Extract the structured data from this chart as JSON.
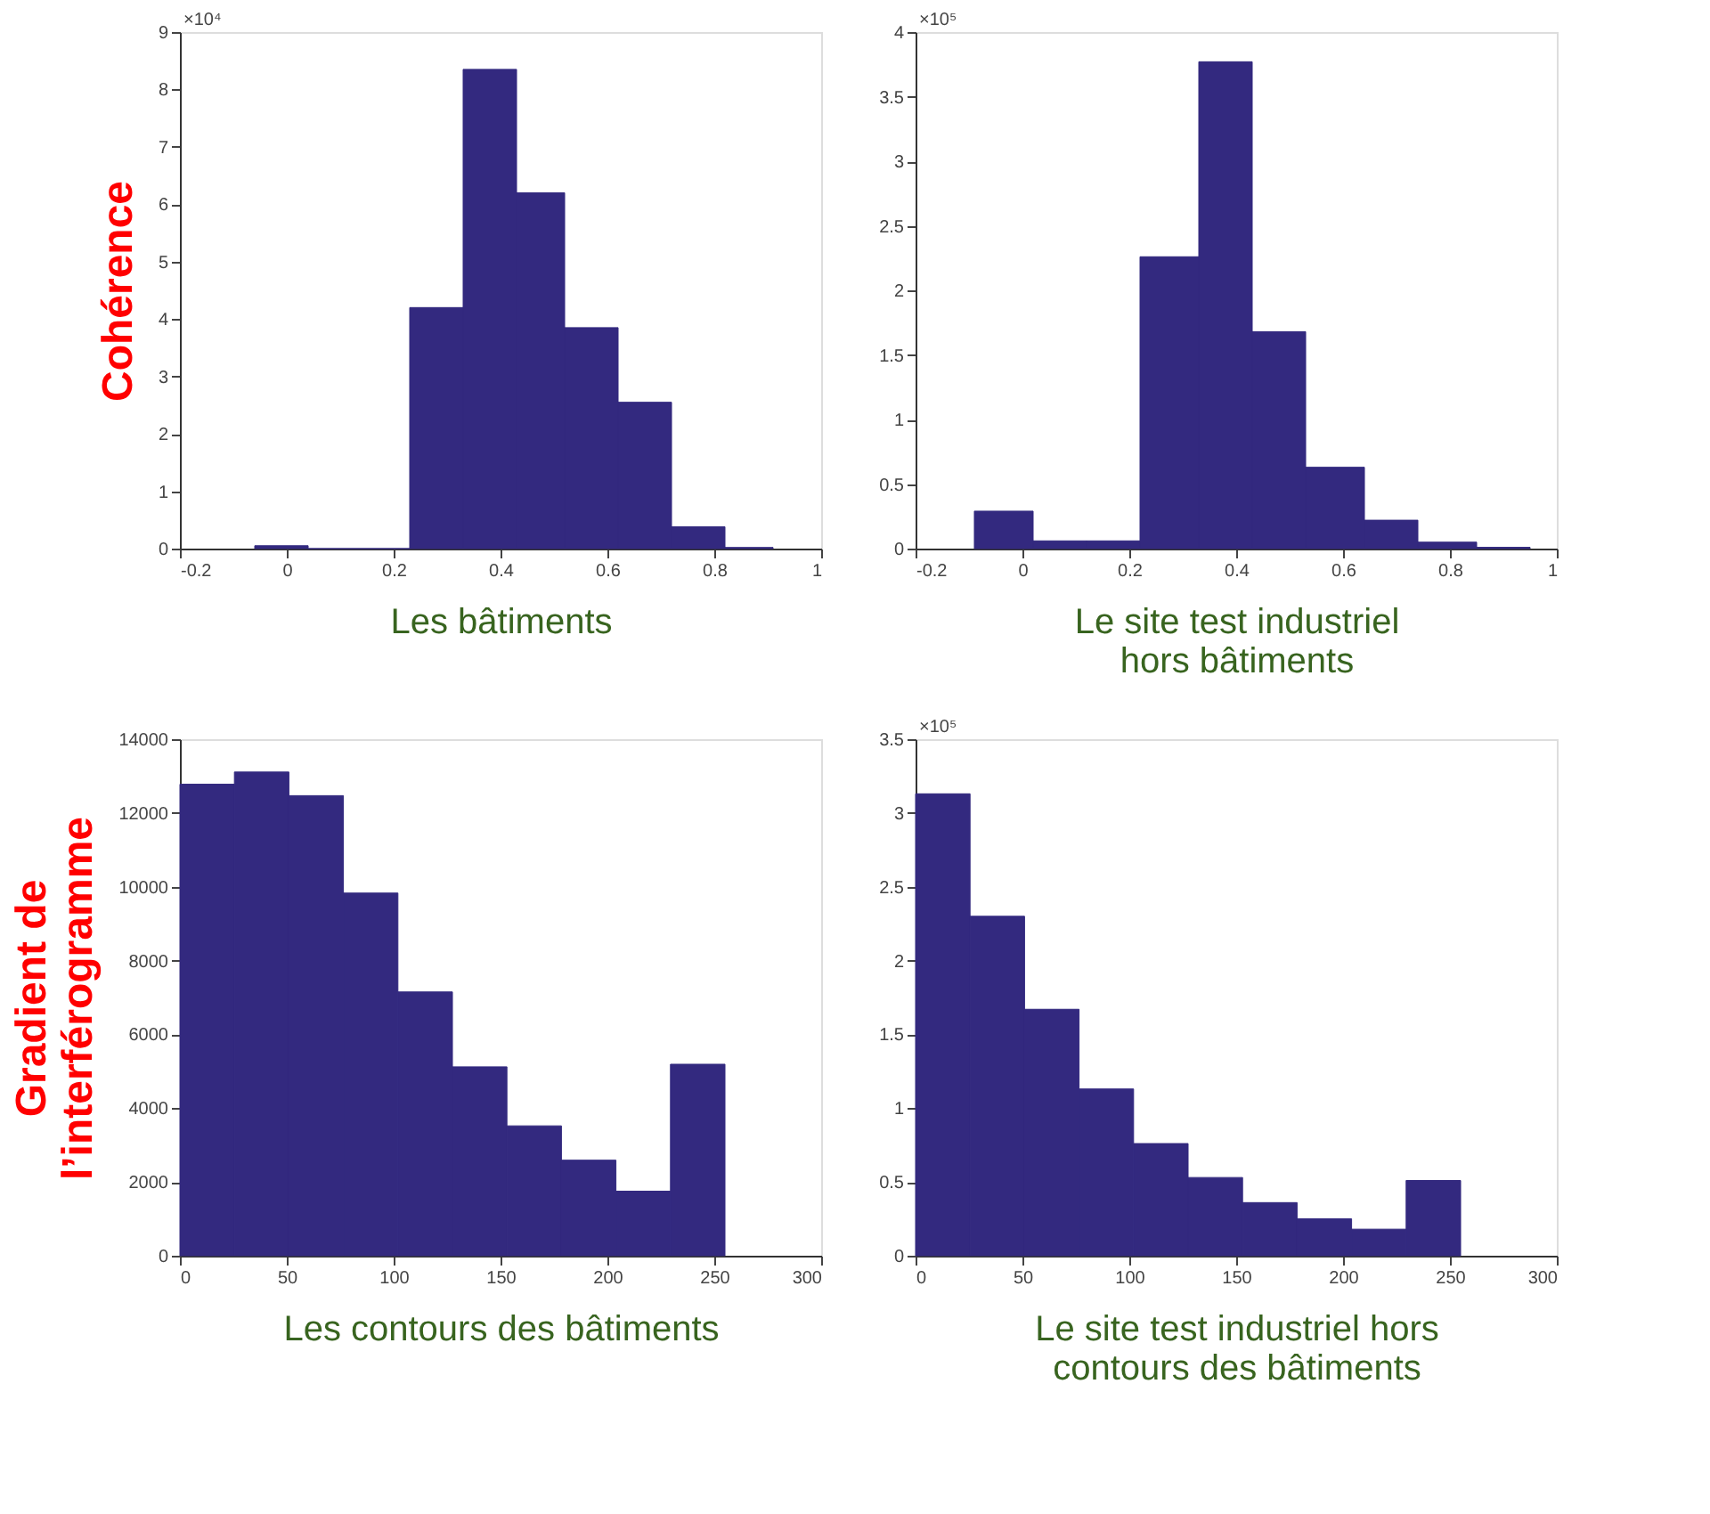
{
  "chart_data": [
    {
      "type": "histogram",
      "ylabel": "Cohérence",
      "xlabel": "Les bâtiments",
      "annotations": [
        "×10⁴"
      ],
      "bins": [
        -0.06,
        0.04,
        0.13,
        0.23,
        0.33,
        0.43,
        0.52,
        0.62,
        0.72,
        0.82,
        0.91
      ],
      "values": [
        0.05,
        0,
        0,
        4.2,
        8.35,
        6.2,
        3.85,
        2.55,
        0.38,
        0.02
      ],
      "color": "#33297f",
      "xlim": [
        -0.2,
        1
      ],
      "xticks": [
        -0.2,
        0,
        0.2,
        0.4,
        0.6,
        0.8,
        1
      ],
      "ylim": [
        0,
        9
      ],
      "yticks": [
        0,
        1,
        2,
        3,
        4,
        5,
        6,
        7,
        8,
        9
      ],
      "grid": false
    },
    {
      "type": "histogram",
      "xlabel": "Le site test industriel\nhors bâtiments",
      "annotations": [
        "×10⁵"
      ],
      "bins": [
        -0.09,
        0.02,
        0.12,
        0.22,
        0.33,
        0.43,
        0.53,
        0.64,
        0.74,
        0.85,
        0.95
      ],
      "values": [
        0.29,
        0.06,
        0.06,
        2.26,
        3.77,
        1.68,
        0.63,
        0.22,
        0.05,
        0.01
      ],
      "color": "#33297f",
      "xlim": [
        -0.2,
        1
      ],
      "xticks": [
        -0.2,
        0,
        0.2,
        0.4,
        0.6,
        0.8,
        1
      ],
      "ylim": [
        0,
        4
      ],
      "yticks": [
        0,
        0.5,
        1,
        1.5,
        2,
        2.5,
        3,
        3.5,
        4
      ],
      "grid": false
    },
    {
      "type": "histogram",
      "ylabel": "Gradient de\nl’interférogramme",
      "xlabel": "Les contours des bâtiments",
      "bins": [
        0,
        25.5,
        51,
        76.5,
        102,
        127.5,
        153,
        178.5,
        204,
        229.5,
        255
      ],
      "values": [
        12780,
        13110,
        12470,
        9830,
        7150,
        5120,
        3520,
        2590,
        1750,
        5190
      ],
      "color": "#33297f",
      "xlim": [
        0,
        300
      ],
      "xticks": [
        0,
        50,
        100,
        150,
        200,
        250,
        300
      ],
      "ylim": [
        0,
        14000
      ],
      "yticks": [
        0,
        2000,
        4000,
        6000,
        8000,
        10000,
        12000,
        14000
      ],
      "grid": false
    },
    {
      "type": "histogram",
      "xlabel": "Le site test industriel hors\ncontours des bâtiments",
      "annotations": [
        "×10⁵"
      ],
      "bins": [
        0,
        25.5,
        51,
        76.5,
        102,
        127.5,
        153,
        178.5,
        204,
        229.5,
        255
      ],
      "values": [
        3.13,
        2.3,
        1.67,
        1.13,
        0.76,
        0.53,
        0.36,
        0.25,
        0.18,
        0.51
      ],
      "color": "#33297f",
      "xlim": [
        0,
        300
      ],
      "xticks": [
        0,
        50,
        100,
        150,
        200,
        250,
        300
      ],
      "ylim": [
        0,
        3.5
      ],
      "yticks": [
        0,
        0.5,
        1,
        1.5,
        2,
        2.5,
        3,
        3.5
      ],
      "grid": false
    }
  ]
}
